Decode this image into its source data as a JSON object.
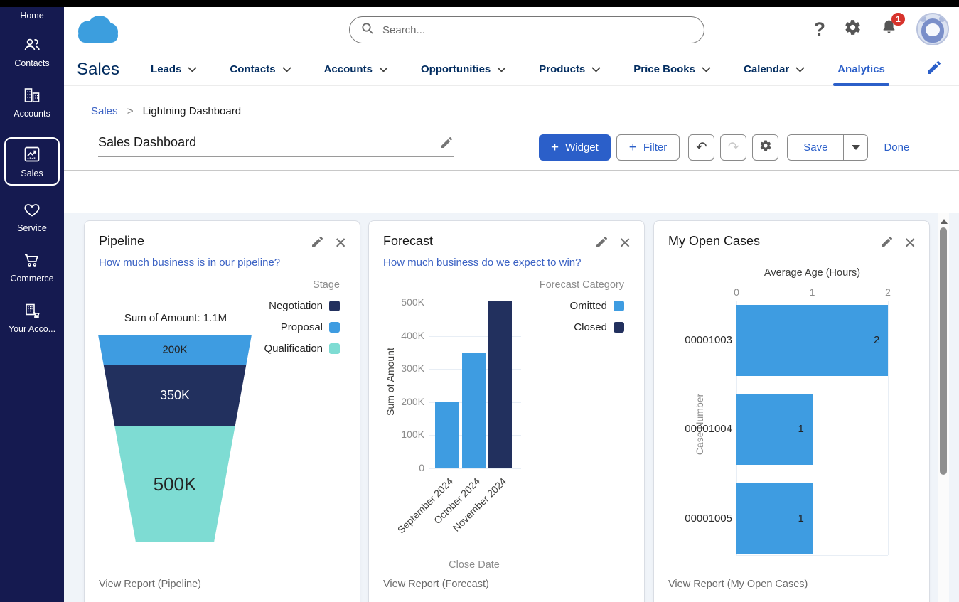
{
  "header": {
    "search_placeholder": "Search...",
    "notification_count": "1"
  },
  "sidebar": {
    "items": [
      {
        "label": "Home"
      },
      {
        "label": "Contacts"
      },
      {
        "label": "Accounts"
      },
      {
        "label": "Sales",
        "selected": true
      },
      {
        "label": "Service"
      },
      {
        "label": "Commerce"
      },
      {
        "label": "Your Acco..."
      }
    ]
  },
  "nav": {
    "app_name": "Sales",
    "items": [
      {
        "label": "Leads"
      },
      {
        "label": "Contacts"
      },
      {
        "label": "Accounts"
      },
      {
        "label": "Opportunities"
      },
      {
        "label": "Products"
      },
      {
        "label": "Price Books"
      },
      {
        "label": "Calendar"
      }
    ],
    "active_tab": "Analytics"
  },
  "breadcrumb": {
    "link": "Sales",
    "separator": ">",
    "current": "Lightning Dashboard"
  },
  "toolbar": {
    "dashboard_title": "Sales Dashboard",
    "widget_label": "Widget",
    "filter_label": "Filter",
    "save_label": "Save",
    "done_label": "Done"
  },
  "colors": {
    "accent": "#2b5fc9",
    "chart_blue": "#3e9ce1",
    "chart_navy": "#22305e",
    "chart_teal": "#7edcd3",
    "sidebar_navy": "#151a50"
  },
  "widgets": {
    "pipeline": {
      "title": "Pipeline",
      "subtitle": "How much business is in our pipeline?",
      "legend_title": "Stage",
      "legend": [
        {
          "label": "Negotiation",
          "color": "#22305e"
        },
        {
          "label": "Proposal",
          "color": "#3e9ce1"
        },
        {
          "label": "Qualification",
          "color": "#7edcd3"
        }
      ],
      "total_label": "Sum of Amount: 1.1M",
      "view_report": "View Report (Pipeline)",
      "chart_data": {
        "type": "funnel",
        "segments": [
          {
            "stage": "Proposal",
            "label": "200K",
            "value": 200000,
            "color": "#3e9ce1",
            "label_color": "#232323"
          },
          {
            "stage": "Negotiation",
            "label": "350K",
            "value": 350000,
            "color": "#22305e",
            "label_color": "#ffffff"
          },
          {
            "stage": "Qualification",
            "label": "500K",
            "value": 500000,
            "color": "#7edcd3",
            "label_color": "#232323"
          }
        ],
        "total": "1.1M"
      }
    },
    "forecast": {
      "title": "Forecast",
      "subtitle": "How much business do we expect to win?",
      "legend_title": "Forecast Category",
      "legend": [
        {
          "label": "Omitted",
          "color": "#3e9ce1"
        },
        {
          "label": "Closed",
          "color": "#22305e"
        }
      ],
      "view_report": "View Report (Forecast)",
      "chart_data": {
        "type": "bar",
        "categories": [
          "September 2024",
          "October 2024",
          "November 2024"
        ],
        "values": [
          200000,
          350000,
          505000
        ],
        "bar_categories": [
          "Omitted",
          "Omitted",
          "Closed"
        ],
        "ylabel": "Sum of Amount",
        "xlabel": "Close Date",
        "yticks": [
          "500K",
          "400K",
          "300K",
          "200K",
          "100K",
          "0"
        ],
        "ylim": [
          0,
          500000
        ],
        "grid": true
      }
    },
    "cases": {
      "title": "My Open Cases",
      "chart_title": "Average Age (Hours)",
      "view_report": "View Report (My Open Cases)",
      "chart_data": {
        "type": "bar-horizontal",
        "categories": [
          "00001003",
          "00001004",
          "00001005"
        ],
        "values": [
          2,
          1,
          1
        ],
        "xticks": [
          "0",
          "1",
          "2"
        ],
        "xlim": [
          0,
          2
        ],
        "ylabel": "Case Number",
        "bar_color": "#3e9ce1",
        "grid": true
      }
    }
  }
}
